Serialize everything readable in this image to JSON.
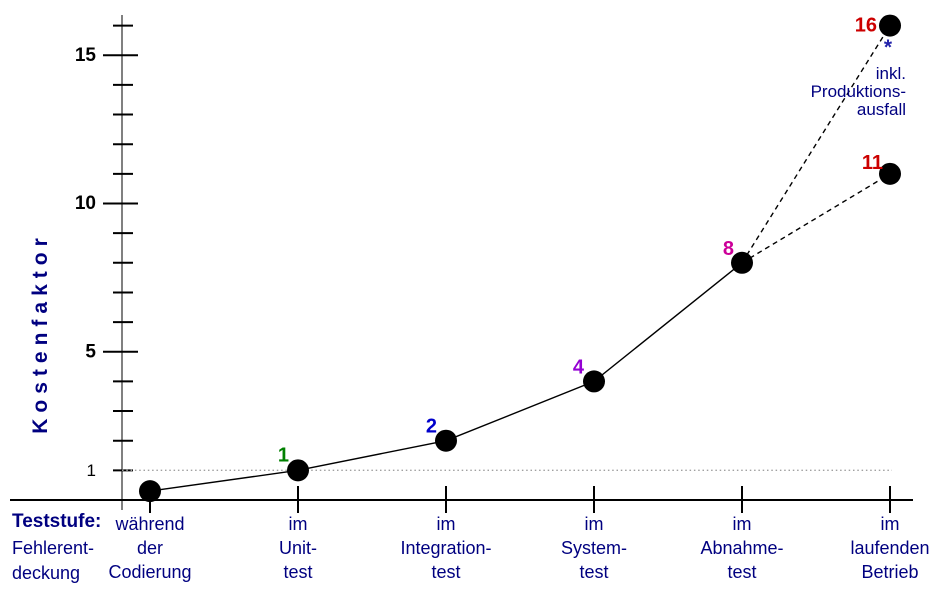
{
  "labels": {
    "x_axis_title": "Teststufe:",
    "x_axis_subtitle": "Fehlerent-\ndeckung"
  },
  "annotation": {
    "marker": "*",
    "text": "inkl.\nProduktions-\nausfall",
    "color": "#000080",
    "marker_color": "#2222aa"
  },
  "colors": {
    "text_navy": "#000080",
    "axis_gray": "#808080",
    "line_black": "#000000",
    "dotted_reference": "#a0a0a0",
    "tick_label_black": "#000000",
    "point_fill": "#000000"
  },
  "chart_data": {
    "type": "line",
    "title": "",
    "ylabel": "Kostenfaktor",
    "xlabel": "Teststufe: Fehlerentdeckung",
    "ylim": [
      0,
      16.5
    ],
    "grid": false,
    "legend": "none",
    "reference_line": {
      "value": 1,
      "style": "dotted"
    },
    "y_axis": {
      "minor_tick_values": [
        1,
        2,
        3,
        4,
        5,
        6,
        7,
        8,
        9,
        10,
        11,
        12,
        13,
        14,
        15,
        16
      ],
      "major_tick_values": [
        5,
        10,
        15
      ],
      "tick_labels": [
        {
          "text": "15",
          "value": 15,
          "bold": true
        },
        {
          "text": "10",
          "value": 10,
          "bold": true
        },
        {
          "text": "5",
          "value": 5,
          "bold": true
        },
        {
          "text": "1",
          "value": 1,
          "bold": false
        }
      ]
    },
    "categories": [
      {
        "lines": "während\nder\nCodierung"
      },
      {
        "lines": "im\nUnit-\ntest"
      },
      {
        "lines": "im\nIntegration-\ntest"
      },
      {
        "lines": "im\nSystem-\ntest"
      },
      {
        "lines": "im\nAbnahme-\ntest"
      },
      {
        "lines": "im\nlaufenden\nBetrieb"
      }
    ],
    "points": [
      {
        "category_index": 0,
        "value": 0.3,
        "label": "",
        "label_color": null,
        "label_offset": null
      },
      {
        "category_index": 1,
        "value": 1,
        "label": "1",
        "label_color": "#008000",
        "label_offset": [
          -9,
          -15
        ]
      },
      {
        "category_index": 2,
        "value": 2,
        "label": "2",
        "label_color": "#0000cc",
        "label_offset": [
          -9,
          -14
        ]
      },
      {
        "category_index": 3,
        "value": 4,
        "label": "4",
        "label_color": "#9400d3",
        "label_offset": [
          -10,
          -14
        ]
      },
      {
        "category_index": 4,
        "value": 8,
        "label": "8",
        "label_color": "#cc0099",
        "label_offset": [
          -8,
          -14
        ]
      },
      {
        "category_index": 5,
        "value": 11,
        "label": "11",
        "label_color": "#cc0000",
        "label_offset": [
          -7,
          -11
        ]
      },
      {
        "category_index": 5,
        "value": 16,
        "label": "16",
        "label_color": "#cc0000",
        "label_offset": [
          -13,
          0
        ]
      }
    ],
    "solid_segment_point_indices": [
      0,
      1,
      2,
      3,
      4
    ],
    "dashed_segments": [
      [
        4,
        5
      ],
      [
        4,
        6
      ]
    ]
  }
}
